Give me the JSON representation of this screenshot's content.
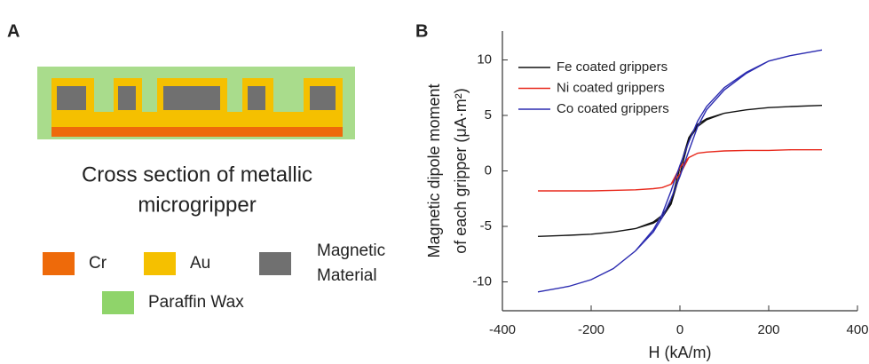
{
  "panel_a": {
    "label": "A",
    "caption": [
      "Cross section of metallic",
      "microgripper"
    ],
    "legend": [
      {
        "name": [
          "Cr"
        ],
        "color": "#ee6a0a"
      },
      {
        "name": [
          "Au"
        ],
        "color": "#f5c000"
      },
      {
        "name": [
          "Magnetic",
          "Material"
        ],
        "color": "#707070"
      },
      {
        "name": [
          "Paraffin Wax"
        ],
        "color": "#8fd46a"
      }
    ]
  },
  "panel_b": {
    "label": "B"
  },
  "chart_data": {
    "type": "line",
    "x_label": "H (kA/m)",
    "y_label": [
      "Magnetic dipole moment",
      "of each gripper (μA·m²)"
    ],
    "x": [
      -320,
      -250,
      -200,
      -150,
      -100,
      -60,
      -40,
      -20,
      0,
      20,
      40,
      60,
      100,
      150,
      200,
      250,
      320,
      250,
      200,
      150,
      100,
      60,
      40,
      20,
      0,
      -20,
      -40,
      -60,
      -100,
      -150,
      -200,
      -250,
      -320
    ],
    "series": [
      {
        "name": "Fe coated grippers",
        "color": "#111111",
        "values": [
          -5.9,
          -5.8,
          -5.7,
          -5.5,
          -5.2,
          -4.7,
          -4.2,
          -3.0,
          -0.3,
          2.8,
          4.0,
          4.6,
          5.2,
          5.5,
          5.7,
          5.8,
          5.9,
          5.8,
          5.7,
          5.5,
          5.2,
          4.7,
          4.2,
          3.0,
          0.3,
          -2.8,
          -4.0,
          -4.6,
          -5.2,
          -5.5,
          -5.7,
          -5.8,
          -5.9
        ]
      },
      {
        "name": "Ni coated grippers",
        "color": "#e8291c",
        "values": [
          -1.8,
          -1.8,
          -1.8,
          -1.75,
          -1.7,
          -1.6,
          -1.5,
          -1.2,
          -0.3,
          1.2,
          1.6,
          1.7,
          1.8,
          1.85,
          1.85,
          1.9,
          1.9,
          1.9,
          1.85,
          1.85,
          1.8,
          1.7,
          1.6,
          1.2,
          0.3,
          -1.2,
          -1.5,
          -1.6,
          -1.7,
          -1.75,
          -1.8,
          -1.8,
          -1.8
        ]
      },
      {
        "name": "Co coated grippers",
        "color": "#2b2bb0",
        "values": [
          -10.9,
          -10.4,
          -9.8,
          -8.8,
          -7.2,
          -5.5,
          -4.2,
          -2.5,
          -0.5,
          1.8,
          4.0,
          5.5,
          7.3,
          8.8,
          9.9,
          10.4,
          10.9,
          10.4,
          9.9,
          8.9,
          7.5,
          5.8,
          4.5,
          2.6,
          0.5,
          -1.8,
          -3.9,
          -5.3,
          -7.2,
          -8.8,
          -9.8,
          -10.4,
          -10.9
        ]
      }
    ],
    "xlim": [
      -400,
      400
    ],
    "xticks": [
      -400,
      -200,
      0,
      200,
      400
    ],
    "ylim": [
      -12.6,
      12.6
    ],
    "yticks": [
      -10,
      -5,
      0,
      5,
      10
    ],
    "legend_position": "upper left"
  }
}
